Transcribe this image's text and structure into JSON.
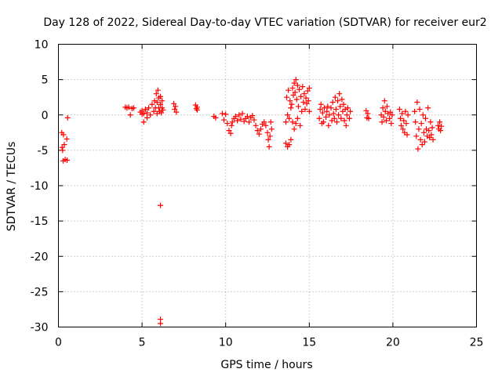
{
  "chart_data": {
    "type": "scatter",
    "title": "Day 128 of 2022, Sidereal Day-to-day VTEC variation (SDTVAR) for receiver eur2",
    "xlabel": "GPS time / hours",
    "ylabel": "SDTVAR / TECUs",
    "xlim": [
      0,
      25
    ],
    "ylim": [
      -30,
      10
    ],
    "xticks": [
      0,
      5,
      10,
      15,
      20,
      25
    ],
    "yticks": [
      10,
      5,
      0,
      -5,
      -10,
      -15,
      -20,
      -25,
      -30
    ],
    "xtick_labels": [
      "0",
      "5",
      "10",
      "15",
      "20",
      "25"
    ],
    "ytick_labels": [
      "10",
      "5",
      "0",
      "-5",
      "-10",
      "-15",
      "-20",
      "-25",
      "-30"
    ],
    "grid": true,
    "marker": "+",
    "color": "#ff0000",
    "series": [
      {
        "name": "SDTVAR",
        "points": [
          [
            0.2,
            -2.5
          ],
          [
            0.22,
            -4.6
          ],
          [
            0.25,
            -5.0
          ],
          [
            0.28,
            -6.5
          ],
          [
            0.3,
            -2.8
          ],
          [
            0.35,
            -4.2
          ],
          [
            0.4,
            -6.3
          ],
          [
            0.5,
            -3.4
          ],
          [
            0.52,
            -6.4
          ],
          [
            0.55,
            -0.4
          ],
          [
            4.0,
            1.1
          ],
          [
            4.1,
            1.0
          ],
          [
            4.2,
            1.1
          ],
          [
            4.3,
            0.0
          ],
          [
            4.4,
            0.9
          ],
          [
            4.5,
            1.0
          ],
          [
            4.9,
            0.4
          ],
          [
            5.0,
            0.1
          ],
          [
            5.0,
            0.6
          ],
          [
            5.1,
            0.2
          ],
          [
            5.1,
            -1.0
          ],
          [
            5.2,
            0.8
          ],
          [
            5.3,
            0.3
          ],
          [
            5.3,
            -0.4
          ],
          [
            5.4,
            1.0
          ],
          [
            5.5,
            0.0
          ],
          [
            5.6,
            1.5
          ],
          [
            5.7,
            0.5
          ],
          [
            5.75,
            2.0
          ],
          [
            5.8,
            1.0
          ],
          [
            5.85,
            3.0
          ],
          [
            5.9,
            0.2
          ],
          [
            5.9,
            1.8
          ],
          [
            5.95,
            3.5
          ],
          [
            6.0,
            2.4
          ],
          [
            6.0,
            1.0
          ],
          [
            6.05,
            0.5
          ],
          [
            6.1,
            2.6
          ],
          [
            6.1,
            1.5
          ],
          [
            6.15,
            0.3
          ],
          [
            6.2,
            2.0
          ],
          [
            6.2,
            1.0
          ],
          [
            6.25,
            0.7
          ],
          [
            6.1,
            -12.8
          ],
          [
            6.1,
            -28.9
          ],
          [
            6.1,
            -29.5
          ],
          [
            6.9,
            1.6
          ],
          [
            6.95,
            0.8
          ],
          [
            7.0,
            1.2
          ],
          [
            7.05,
            0.4
          ],
          [
            8.2,
            1.4
          ],
          [
            8.25,
            0.9
          ],
          [
            8.3,
            1.1
          ],
          [
            8.3,
            0.7
          ],
          [
            9.3,
            -0.2
          ],
          [
            9.4,
            -0.4
          ],
          [
            9.8,
            0.2
          ],
          [
            9.9,
            -0.7
          ],
          [
            10.0,
            0.1
          ],
          [
            10.1,
            -1.2
          ],
          [
            10.2,
            -2.2
          ],
          [
            10.3,
            -2.6
          ],
          [
            10.35,
            -1.5
          ],
          [
            10.4,
            -1.0
          ],
          [
            10.5,
            -0.5
          ],
          [
            10.6,
            -0.2
          ],
          [
            10.7,
            -0.8
          ],
          [
            10.8,
            0.0
          ],
          [
            10.9,
            -0.6
          ],
          [
            11.0,
            0.2
          ],
          [
            11.1,
            -0.9
          ],
          [
            11.2,
            -0.5
          ],
          [
            11.3,
            -0.2
          ],
          [
            11.4,
            -1.0
          ],
          [
            11.5,
            -0.4
          ],
          [
            11.6,
            -0.1
          ],
          [
            11.7,
            -0.7
          ],
          [
            11.8,
            -1.5
          ],
          [
            11.9,
            -2.2
          ],
          [
            12.0,
            -2.7
          ],
          [
            12.1,
            -2.0
          ],
          [
            12.2,
            -1.3
          ],
          [
            12.3,
            -1.0
          ],
          [
            12.4,
            -1.5
          ],
          [
            12.5,
            -2.5
          ],
          [
            12.55,
            -3.5
          ],
          [
            12.6,
            -4.5
          ],
          [
            12.65,
            -3.0
          ],
          [
            12.7,
            -1.0
          ],
          [
            12.75,
            -2.0
          ],
          [
            13.6,
            -4.0
          ],
          [
            13.7,
            -4.5
          ],
          [
            13.8,
            -4.2
          ],
          [
            13.9,
            -3.5
          ],
          [
            13.6,
            -1.0
          ],
          [
            13.7,
            0.0
          ],
          [
            13.8,
            -0.5
          ],
          [
            13.9,
            1.0
          ],
          [
            13.65,
            2.5
          ],
          [
            13.75,
            3.5
          ],
          [
            13.85,
            2.0
          ],
          [
            13.95,
            1.5
          ],
          [
            14.0,
            3.8
          ],
          [
            14.05,
            2.8
          ],
          [
            14.1,
            4.5
          ],
          [
            14.15,
            3.2
          ],
          [
            14.2,
            5.0
          ],
          [
            14.25,
            2.2
          ],
          [
            14.3,
            4.2
          ],
          [
            14.35,
            1.2
          ],
          [
            14.4,
            3.6
          ],
          [
            14.45,
            -1.5
          ],
          [
            14.5,
            2.6
          ],
          [
            14.55,
            0.5
          ],
          [
            14.6,
            4.0
          ],
          [
            14.65,
            1.8
          ],
          [
            14.7,
            3.0
          ],
          [
            14.75,
            0.8
          ],
          [
            14.8,
            2.4
          ],
          [
            14.85,
            1.6
          ],
          [
            14.9,
            3.4
          ],
          [
            14.95,
            2.0
          ],
          [
            15.0,
            3.8
          ],
          [
            15.0,
            0.5
          ],
          [
            14.0,
            -1.0
          ],
          [
            14.1,
            -2.0
          ],
          [
            14.2,
            -1.2
          ],
          [
            14.3,
            -0.5
          ],
          [
            15.6,
            -0.5
          ],
          [
            15.65,
            0.8
          ],
          [
            15.7,
            1.5
          ],
          [
            15.75,
            -1.2
          ],
          [
            15.8,
            0.3
          ],
          [
            15.85,
            -1.0
          ],
          [
            15.9,
            1.0
          ],
          [
            16.0,
            -0.3
          ],
          [
            16.05,
            0.5
          ],
          [
            16.1,
            1.2
          ],
          [
            16.15,
            -1.5
          ],
          [
            16.2,
            0.0
          ],
          [
            16.3,
            1.0
          ],
          [
            16.35,
            -0.8
          ],
          [
            16.4,
            1.8
          ],
          [
            16.45,
            0.2
          ],
          [
            16.5,
            -0.5
          ],
          [
            16.55,
            2.5
          ],
          [
            16.6,
            0.8
          ],
          [
            16.65,
            -1.0
          ],
          [
            16.7,
            2.0
          ],
          [
            16.75,
            0.0
          ],
          [
            16.8,
            3.0
          ],
          [
            16.85,
            1.2
          ],
          [
            16.9,
            -0.5
          ],
          [
            16.95,
            2.2
          ],
          [
            17.0,
            0.5
          ],
          [
            17.05,
            1.5
          ],
          [
            17.1,
            -0.8
          ],
          [
            17.15,
            0.8
          ],
          [
            17.2,
            -1.5
          ],
          [
            17.25,
            0.0
          ],
          [
            17.3,
            1.0
          ],
          [
            17.4,
            -0.5
          ],
          [
            17.45,
            0.5
          ],
          [
            18.4,
            0.6
          ],
          [
            18.45,
            -0.4
          ],
          [
            18.5,
            0.2
          ],
          [
            18.55,
            -0.5
          ],
          [
            19.3,
            0.0
          ],
          [
            19.35,
            -1.0
          ],
          [
            19.4,
            1.0
          ],
          [
            19.45,
            -0.3
          ],
          [
            19.5,
            2.0
          ],
          [
            19.55,
            0.5
          ],
          [
            19.6,
            -0.8
          ],
          [
            19.65,
            1.2
          ],
          [
            19.7,
            0.2
          ],
          [
            19.8,
            -0.5
          ],
          [
            19.85,
            0.4
          ],
          [
            19.9,
            -1.2
          ],
          [
            19.95,
            0.0
          ],
          [
            20.4,
            0.8
          ],
          [
            20.45,
            -0.5
          ],
          [
            20.5,
            -1.5
          ],
          [
            20.55,
            0.2
          ],
          [
            20.6,
            -2.0
          ],
          [
            20.65,
            -0.8
          ],
          [
            20.7,
            -2.5
          ],
          [
            20.75,
            0.5
          ],
          [
            20.8,
            -1.2
          ],
          [
            20.85,
            -2.8
          ],
          [
            20.9,
            0.0
          ],
          [
            21.3,
            0.5
          ],
          [
            21.35,
            -1.0
          ],
          [
            21.4,
            -3.0
          ],
          [
            21.45,
            1.8
          ],
          [
            21.5,
            -4.8
          ],
          [
            21.55,
            -2.0
          ],
          [
            21.6,
            0.8
          ],
          [
            21.65,
            -3.5
          ],
          [
            21.7,
            -1.2
          ],
          [
            21.75,
            -4.2
          ],
          [
            21.8,
            0.0
          ],
          [
            21.85,
            -2.5
          ],
          [
            21.9,
            -3.8
          ],
          [
            21.95,
            -0.5
          ],
          [
            22.0,
            -2.0
          ],
          [
            22.05,
            -3.0
          ],
          [
            22.1,
            1.0
          ],
          [
            22.15,
            -2.2
          ],
          [
            22.2,
            -3.2
          ],
          [
            22.25,
            -1.0
          ],
          [
            22.3,
            -2.8
          ],
          [
            22.35,
            -1.8
          ],
          [
            22.4,
            -3.5
          ],
          [
            22.7,
            -1.5
          ],
          [
            22.75,
            -2.0
          ],
          [
            22.8,
            -1.0
          ],
          [
            22.85,
            -2.2
          ],
          [
            22.9,
            -1.6
          ]
        ]
      }
    ]
  }
}
